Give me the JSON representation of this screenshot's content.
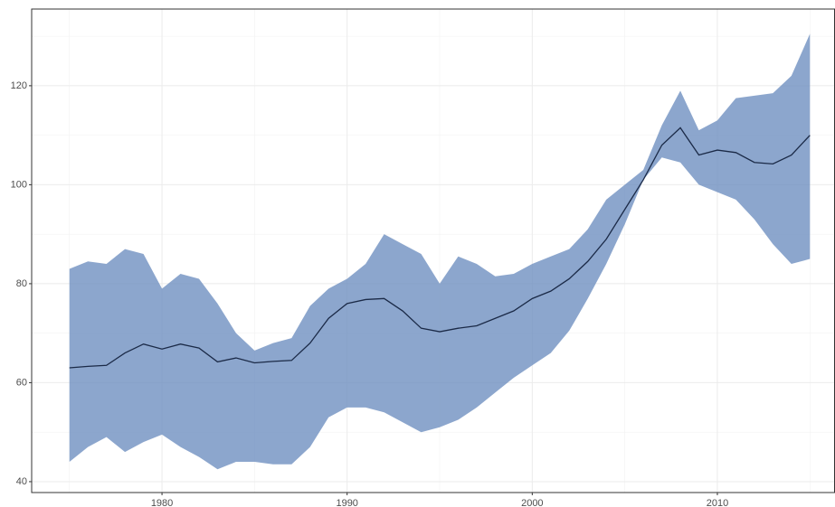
{
  "chart_data": {
    "type": "line",
    "x": [
      1975,
      1976,
      1977,
      1978,
      1979,
      1980,
      1981,
      1982,
      1983,
      1984,
      1985,
      1986,
      1987,
      1988,
      1989,
      1990,
      1991,
      1992,
      1993,
      1994,
      1995,
      1996,
      1997,
      1998,
      1999,
      2000,
      2001,
      2002,
      2003,
      2004,
      2005,
      2006,
      2007,
      2008,
      2009,
      2010,
      2011,
      2012,
      2013,
      2014,
      2015
    ],
    "values": [
      63,
      63.3,
      63.5,
      66,
      67.8,
      66.8,
      67.8,
      67,
      64.2,
      65,
      64,
      64.3,
      64.5,
      68,
      73,
      76,
      76.8,
      77,
      74.5,
      71,
      70.3,
      71,
      71.5,
      73,
      74.5,
      77,
      78.5,
      81,
      84.5,
      89,
      95,
      101,
      108,
      111.5,
      106,
      107,
      106.5,
      104.5,
      104.2,
      106,
      110
    ],
    "upper": [
      83,
      84.5,
      84,
      87,
      86,
      79,
      82,
      81,
      76,
      70,
      66.5,
      68,
      69,
      75.5,
      79,
      81,
      84,
      90,
      88,
      86,
      80,
      85.5,
      84,
      81.5,
      82,
      84,
      85.5,
      87,
      91,
      97,
      100,
      103,
      112,
      119,
      111,
      113,
      117.5,
      118,
      118.5,
      122,
      130.5
    ],
    "lower": [
      44,
      47,
      49,
      46,
      48,
      49.5,
      47,
      45,
      42.5,
      44,
      44,
      43.5,
      43.5,
      47,
      53,
      55,
      55,
      54,
      52,
      50,
      51,
      52.5,
      55,
      58,
      61,
      63.5,
      66,
      70.5,
      77,
      84,
      92,
      101,
      105.5,
      104.5,
      100,
      98.5,
      97,
      93,
      88,
      84,
      85
    ],
    "line_color": "#1b2a47",
    "band_color": "#6f90c1",
    "xlim": [
      1972.96,
      2016.33
    ],
    "ylim": [
      37.8,
      135.5
    ],
    "xticks": [
      1980,
      1990,
      2000,
      2010
    ],
    "yticks": [
      40,
      60,
      80,
      100,
      120
    ],
    "grid": true
  }
}
